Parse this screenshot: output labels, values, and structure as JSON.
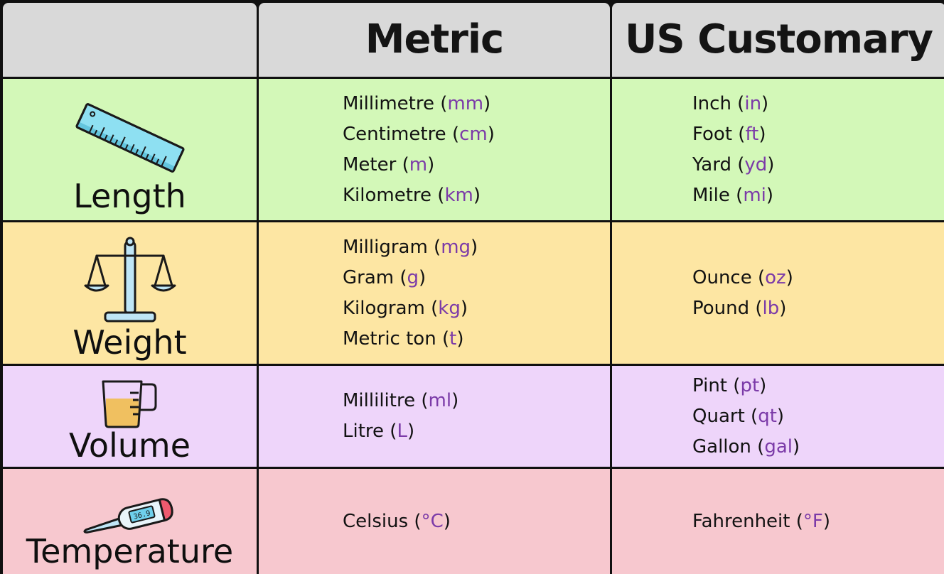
{
  "header": {
    "metric": "Metric",
    "us_customary": "US Customary"
  },
  "rows": {
    "length": {
      "label": "Length",
      "icon": "ruler-icon",
      "metric": [
        {
          "name": "Millimetre",
          "abbr": "mm"
        },
        {
          "name": "Centimetre",
          "abbr": "cm"
        },
        {
          "name": "Meter",
          "abbr": "m"
        },
        {
          "name": "Kilometre",
          "abbr": "km"
        }
      ],
      "us": [
        {
          "name": "Inch",
          "abbr": "in"
        },
        {
          "name": "Foot",
          "abbr": "ft"
        },
        {
          "name": "Yard",
          "abbr": "yd"
        },
        {
          "name": "Mile",
          "abbr": "mi"
        }
      ]
    },
    "weight": {
      "label": "Weight",
      "icon": "balance-scale-icon",
      "metric": [
        {
          "name": "Milligram",
          "abbr": "mg"
        },
        {
          "name": "Gram",
          "abbr": "g"
        },
        {
          "name": "Kilogram",
          "abbr": "kg"
        },
        {
          "name": "Metric ton",
          "abbr": "t"
        }
      ],
      "us": [
        {
          "name": "Ounce",
          "abbr": "oz"
        },
        {
          "name": "Pound",
          "abbr": "lb"
        }
      ]
    },
    "volume": {
      "label": "Volume",
      "icon": "measuring-cup-icon",
      "metric": [
        {
          "name": "Millilitre",
          "abbr": "ml"
        },
        {
          "name": "Litre",
          "abbr": "L"
        }
      ],
      "us": [
        {
          "name": "Pint",
          "abbr": "pt"
        },
        {
          "name": "Quart",
          "abbr": "qt"
        },
        {
          "name": "Gallon",
          "abbr": "gal"
        }
      ]
    },
    "temperature": {
      "label": "Temperature",
      "icon": "thermometer-icon",
      "thermometer_reading": "36.9",
      "metric": [
        {
          "name": "Celsius",
          "abbr": "°C"
        }
      ],
      "us": [
        {
          "name": "Fahrenheit",
          "abbr": "°F"
        }
      ]
    }
  },
  "colors": {
    "header_bg": "#d9d9d9",
    "length_bg": "#d3f8b8",
    "weight_bg": "#fde6a3",
    "volume_bg": "#eed5fa",
    "temperature_bg": "#f7c8cf",
    "abbr_color": "#7b3aa8",
    "border": "#101010"
  }
}
